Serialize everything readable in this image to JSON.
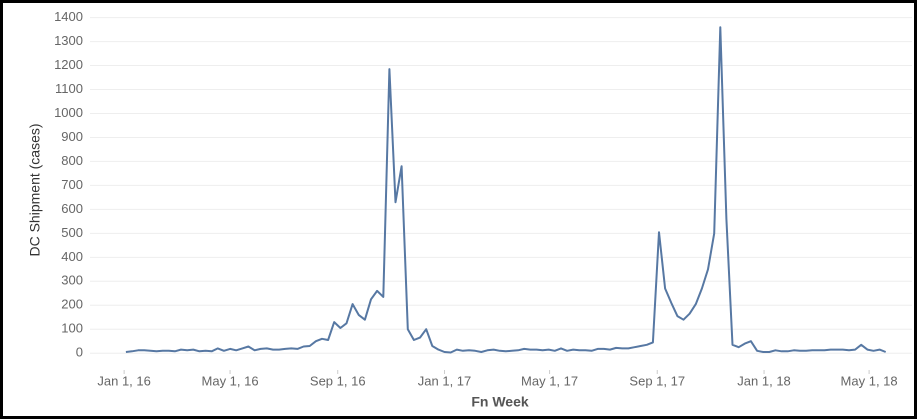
{
  "chart_data": {
    "type": "line",
    "y_label": "DC Shipment (cases)",
    "x_label": "Fn Week",
    "color": "#5778a3",
    "grid": true,
    "x": [
      "2016-01-03",
      "2016-01-10",
      "2016-01-17",
      "2016-01-24",
      "2016-01-31",
      "2016-02-07",
      "2016-02-14",
      "2016-02-21",
      "2016-02-28",
      "2016-03-06",
      "2016-03-13",
      "2016-03-20",
      "2016-03-27",
      "2016-04-03",
      "2016-04-10",
      "2016-04-17",
      "2016-04-24",
      "2016-05-01",
      "2016-05-08",
      "2016-05-15",
      "2016-05-22",
      "2016-05-29",
      "2016-06-05",
      "2016-06-12",
      "2016-06-19",
      "2016-06-26",
      "2016-07-03",
      "2016-07-10",
      "2016-07-17",
      "2016-07-24",
      "2016-07-31",
      "2016-08-07",
      "2016-08-14",
      "2016-08-21",
      "2016-08-28",
      "2016-09-04",
      "2016-09-11",
      "2016-09-18",
      "2016-09-25",
      "2016-10-02",
      "2016-10-09",
      "2016-10-16",
      "2016-10-23",
      "2016-10-30",
      "2016-11-06",
      "2016-11-13",
      "2016-11-20",
      "2016-11-27",
      "2016-12-04",
      "2016-12-11",
      "2016-12-18",
      "2016-12-25",
      "2017-01-01",
      "2017-01-08",
      "2017-01-15",
      "2017-01-22",
      "2017-01-29",
      "2017-02-05",
      "2017-02-12",
      "2017-02-19",
      "2017-02-26",
      "2017-03-05",
      "2017-03-12",
      "2017-03-19",
      "2017-03-26",
      "2017-04-02",
      "2017-04-09",
      "2017-04-16",
      "2017-04-23",
      "2017-04-30",
      "2017-05-07",
      "2017-05-14",
      "2017-05-21",
      "2017-05-28",
      "2017-06-04",
      "2017-06-11",
      "2017-06-18",
      "2017-06-25",
      "2017-07-02",
      "2017-07-09",
      "2017-07-16",
      "2017-07-23",
      "2017-07-30",
      "2017-08-06",
      "2017-08-13",
      "2017-08-20",
      "2017-08-27",
      "2017-09-03",
      "2017-09-10",
      "2017-09-17",
      "2017-09-24",
      "2017-10-01",
      "2017-10-08",
      "2017-10-15",
      "2017-10-22",
      "2017-10-29",
      "2017-11-05",
      "2017-11-12",
      "2017-11-19",
      "2017-11-26",
      "2017-12-03",
      "2017-12-10",
      "2017-12-17",
      "2017-12-24",
      "2017-12-31",
      "2018-01-07",
      "2018-01-14",
      "2018-01-21",
      "2018-01-28",
      "2018-02-04",
      "2018-02-11",
      "2018-02-18",
      "2018-02-25",
      "2018-03-04",
      "2018-03-11",
      "2018-03-18",
      "2018-03-25",
      "2018-04-01",
      "2018-04-08",
      "2018-04-15",
      "2018-04-22",
      "2018-04-29",
      "2018-05-06",
      "2018-05-13",
      "2018-05-20"
    ],
    "values": [
      5,
      8,
      12,
      12,
      10,
      8,
      10,
      10,
      8,
      15,
      12,
      15,
      8,
      10,
      8,
      20,
      10,
      18,
      12,
      20,
      28,
      12,
      18,
      20,
      15,
      15,
      18,
      20,
      18,
      28,
      30,
      50,
      60,
      55,
      130,
      105,
      125,
      205,
      160,
      140,
      225,
      260,
      235,
      1185,
      630,
      780,
      100,
      55,
      65,
      100,
      30,
      15,
      5,
      3,
      15,
      10,
      12,
      10,
      5,
      12,
      15,
      10,
      8,
      10,
      12,
      18,
      15,
      15,
      12,
      15,
      10,
      20,
      10,
      15,
      12,
      12,
      10,
      18,
      18,
      15,
      22,
      20,
      20,
      25,
      30,
      35,
      45,
      505,
      270,
      210,
      155,
      140,
      165,
      205,
      270,
      350,
      500,
      1360,
      560,
      35,
      25,
      40,
      50,
      10,
      5,
      5,
      12,
      8,
      8,
      12,
      10,
      10,
      12,
      12,
      12,
      15,
      15,
      15,
      12,
      15,
      35,
      15,
      10,
      15,
      5
    ],
    "xlim": [
      "2015-11-23",
      "2018-06-19"
    ],
    "xticks": [
      {
        "value": "2016-01-01",
        "label": "Jan 1, 16"
      },
      {
        "value": "2016-05-01",
        "label": "May 1, 16"
      },
      {
        "value": "2016-09-01",
        "label": "Sep 1, 16"
      },
      {
        "value": "2017-01-01",
        "label": "Jan 1, 17"
      },
      {
        "value": "2017-05-01",
        "label": "May 1, 17"
      },
      {
        "value": "2017-09-01",
        "label": "Sep 1, 17"
      },
      {
        "value": "2018-01-01",
        "label": "Jan 1, 18"
      },
      {
        "value": "2018-05-01",
        "label": "May 1, 18"
      }
    ],
    "ylim": [
      -70,
      1440
    ],
    "yticks": [
      0,
      100,
      200,
      300,
      400,
      500,
      600,
      700,
      800,
      900,
      1000,
      1100,
      1200,
      1300,
      1400
    ]
  }
}
